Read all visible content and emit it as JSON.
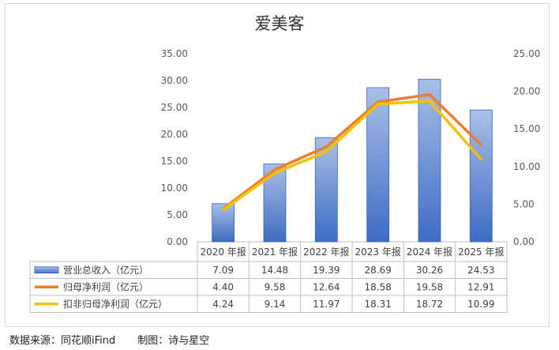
{
  "chart_data": {
    "type": "bar",
    "title": "爱美客",
    "categories": [
      "2020 年报",
      "2021 年报",
      "2022 年报",
      "2023 年报",
      "2024 年报",
      "2025 年报"
    ],
    "y_left_ticks": [
      "0.00",
      "5.00",
      "10.00",
      "15.00",
      "20.00",
      "25.00",
      "30.00",
      "35.00"
    ],
    "y_right_ticks": [
      "0.00",
      "5.00",
      "10.00",
      "15.00",
      "20.00",
      "25.00"
    ],
    "ylim_left": [
      0,
      35
    ],
    "ylim_right": [
      0,
      25
    ],
    "series": [
      {
        "name": "营业总收入（亿元）",
        "type": "bar",
        "axis": "left",
        "color": "#4472c4",
        "values": [
          7.09,
          14.48,
          19.39,
          28.69,
          30.26,
          24.53
        ],
        "labels": [
          "7.09",
          "14.48",
          "19.39",
          "28.69",
          "30.26",
          "24.53"
        ]
      },
      {
        "name": "归母净利润（亿元）",
        "type": "line",
        "axis": "right",
        "color": "#ed7d31",
        "values": [
          4.4,
          9.58,
          12.64,
          18.58,
          19.58,
          12.91
        ],
        "labels": [
          "4.40",
          "9.58",
          "12.64",
          "18.58",
          "19.58",
          "12.91"
        ]
      },
      {
        "name": "扣非归母净利润（亿元）",
        "type": "line",
        "axis": "right",
        "color": "#f2c100",
        "values": [
          4.24,
          9.14,
          11.97,
          18.31,
          18.72,
          10.99
        ],
        "labels": [
          "4.24",
          "9.14",
          "11.97",
          "18.31",
          "18.72",
          "10.99"
        ]
      }
    ],
    "grid": false,
    "legend": "data-table"
  },
  "footer": {
    "source": "数据来源：同花顺iFind",
    "credit": "制图：诗与星空"
  }
}
